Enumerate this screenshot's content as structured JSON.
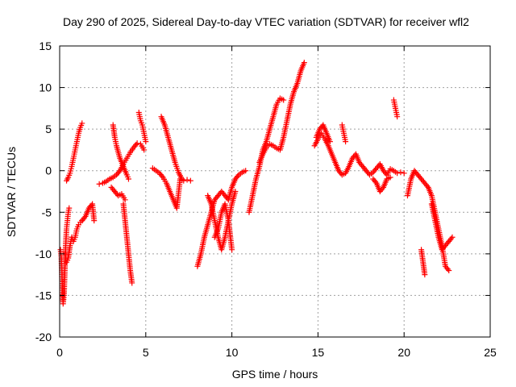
{
  "chart_data": {
    "type": "scatter",
    "title": "Day 290 of 2025, Sidereal Day-to-day VTEC variation (SDTVAR) for receiver wfl2",
    "xlabel": "GPS time / hours",
    "ylabel": "SDTVAR / TECUs",
    "xlim": [
      0,
      25
    ],
    "ylim": [
      -20,
      15
    ],
    "xticks": [
      "0",
      "5",
      "10",
      "15",
      "20",
      "25"
    ],
    "yticks": [
      "-20",
      "-15",
      "-10",
      "-5",
      "0",
      "5",
      "10",
      "15"
    ],
    "grid": true,
    "marker": "plus",
    "color": "#ff0000",
    "series": [
      {
        "x": [
          0.05,
          0.1,
          0.15,
          0.2,
          0.25,
          0.3,
          0.35,
          0.4,
          0.45,
          0.5,
          0.55
        ],
        "y": [
          -9.5,
          -10.5,
          -14,
          -16,
          -15,
          -12,
          -9,
          -7,
          -6,
          -5,
          -4.5
        ]
      },
      {
        "x": [
          0.3,
          0.4,
          0.5,
          0.6,
          0.7,
          0.8,
          0.9,
          1.0,
          1.1,
          1.2,
          1.3
        ],
        "y": [
          -10,
          -11,
          -10.5,
          -9,
          -8,
          -8.5,
          -8,
          -7,
          -6.5,
          -6.2,
          -6
        ]
      },
      {
        "x": [
          0.4,
          0.5,
          0.6,
          0.7,
          0.8,
          0.9,
          1.0,
          1.1,
          1.2,
          1.3
        ],
        "y": [
          -1.2,
          -0.8,
          -0.3,
          0.5,
          1.5,
          2.5,
          3.5,
          4.5,
          5.2,
          5.7
        ]
      },
      {
        "x": [
          1.3,
          1.5,
          1.7,
          1.9,
          2.0
        ],
        "y": [
          -6,
          -5.5,
          -4.5,
          -4,
          -6
        ]
      },
      {
        "x": [
          2.3,
          2.5,
          2.7,
          2.9,
          3.1,
          3.3,
          3.5,
          3.7,
          3.9,
          4.1,
          4.3,
          4.5,
          4.7,
          4.9
        ],
        "y": [
          -1.6,
          -1.5,
          -1.3,
          -1,
          -0.8,
          -0.5,
          0,
          0.8,
          1.5,
          2.2,
          2.8,
          3.3,
          3.2,
          2.5
        ]
      },
      {
        "x": [
          3.0,
          3.2,
          3.4,
          3.6,
          3.8
        ],
        "y": [
          -2,
          -2.5,
          -3,
          -2.8,
          -3.5
        ]
      },
      {
        "x": [
          3.1,
          3.2,
          3.3,
          3.5,
          3.7,
          3.9,
          4.0
        ],
        "y": [
          5.5,
          4,
          3,
          1.5,
          0.5,
          -0.5,
          -1
        ]
      },
      {
        "x": [
          3.7,
          3.8,
          3.9,
          4.0,
          4.1,
          4.2
        ],
        "y": [
          -4,
          -6,
          -8,
          -10,
          -12,
          -13.5
        ]
      },
      {
        "x": [
          4.6,
          4.7,
          4.8,
          4.9,
          5.0
        ],
        "y": [
          7,
          6,
          5.5,
          4.5,
          3.5
        ]
      },
      {
        "x": [
          5.4,
          5.6,
          5.8,
          6.0,
          6.2,
          6.4,
          6.6,
          6.8,
          7.0,
          7.2,
          7.4,
          7.6
        ],
        "y": [
          0.3,
          0,
          -0.3,
          -0.8,
          -1.5,
          -2.5,
          -3.5,
          -4.5,
          -1,
          -1.2,
          -1.1,
          -1.2
        ]
      },
      {
        "x": [
          5.9,
          6.1,
          6.3,
          6.5,
          6.7,
          6.9,
          7.1
        ],
        "y": [
          6.5,
          5.5,
          4,
          2.5,
          1,
          -0.2,
          -1
        ]
      },
      {
        "x": [
          8.0,
          8.2,
          8.4,
          8.6,
          8.8,
          9.0,
          9.2,
          9.4,
          9.6,
          9.8,
          10.0,
          10.2,
          10.4,
          10.6,
          10.8
        ],
        "y": [
          -11.5,
          -10,
          -8,
          -6.5,
          -5,
          -3.5,
          -3,
          -2.5,
          -3,
          -3.5,
          -2,
          -1,
          -0.5,
          -0.2,
          0
        ]
      },
      {
        "x": [
          8.6,
          8.8,
          9.0,
          9.2,
          9.4,
          9.6,
          9.8,
          10.0,
          10.2
        ],
        "y": [
          -3,
          -4,
          -6,
          -8,
          -9.5,
          -8,
          -6,
          -4,
          -2.5
        ]
      },
      {
        "x": [
          9.0,
          9.2,
          9.4,
          9.6,
          9.8,
          10.0
        ],
        "y": [
          -8,
          -7,
          -5,
          -4,
          -6,
          -9.5
        ]
      },
      {
        "x": [
          11.0,
          11.2,
          11.4,
          11.6,
          11.8,
          12.0,
          12.2,
          12.4,
          12.6,
          12.8,
          13.0
        ],
        "y": [
          -5,
          -3,
          -1,
          0.5,
          2.5,
          3.5,
          5,
          6.5,
          8,
          8.7,
          8.5
        ]
      },
      {
        "x": [
          11.6,
          11.8,
          12.0,
          12.2,
          12.4,
          12.6,
          12.8,
          13.0,
          13.2,
          13.4,
          13.6,
          13.8,
          14.0,
          14.2
        ],
        "y": [
          1,
          2,
          2.8,
          3.2,
          3,
          2.7,
          2.5,
          4,
          6,
          8,
          9.5,
          10.5,
          12,
          13
        ]
      },
      {
        "x": [
          14.8,
          15.0,
          15.2,
          15.4,
          15.6,
          15.8,
          16.0,
          16.2,
          16.4,
          16.6,
          16.8,
          17.0,
          17.2,
          17.4,
          17.6,
          17.8,
          18.0,
          18.2,
          18.4,
          18.6,
          18.8,
          19.0,
          19.2,
          19.4,
          19.6,
          19.8,
          20.0
        ],
        "y": [
          3,
          3.8,
          4.5,
          3.8,
          3,
          2,
          1,
          0,
          -0.5,
          -0.3,
          0.5,
          1.5,
          2,
          1,
          0.5,
          0,
          -0.5,
          -0.2,
          0.3,
          0.8,
          0,
          -0.5,
          0.2,
          0,
          -0.3,
          -0.2,
          -0.3
        ]
      },
      {
        "x": [
          14.9,
          15.1,
          15.3,
          15.5,
          15.7
        ],
        "y": [
          4,
          5,
          5.5,
          4.5,
          3.5
        ]
      },
      {
        "x": [
          16.4,
          16.5,
          16.6
        ],
        "y": [
          5.5,
          4.5,
          3.5
        ]
      },
      {
        "x": [
          18.2,
          18.4,
          18.6,
          18.8,
          19.0,
          19.2
        ],
        "y": [
          -1,
          -1.5,
          -2.5,
          -2,
          -1,
          -0.8
        ]
      },
      {
        "x": [
          19.4,
          19.5,
          19.6
        ],
        "y": [
          8.5,
          7.5,
          6.5
        ]
      },
      {
        "x": [
          20.2,
          20.4,
          20.6,
          20.8,
          21.0,
          21.2,
          21.4,
          21.6,
          21.8,
          22.0,
          22.2,
          22.4,
          22.6
        ],
        "y": [
          -3,
          -1,
          0,
          -0.5,
          -1,
          -1.5,
          -2,
          -3,
          -5,
          -7,
          -9,
          -11.5,
          -12
        ]
      },
      {
        "x": [
          21.0,
          21.2
        ],
        "y": [
          -9.5,
          -12.5
        ]
      },
      {
        "x": [
          21.6,
          21.8,
          22.0,
          22.2,
          22.4,
          22.6,
          22.8
        ],
        "y": [
          -4,
          -6,
          -8,
          -9.5,
          -9,
          -8.5,
          -8
        ]
      }
    ]
  }
}
